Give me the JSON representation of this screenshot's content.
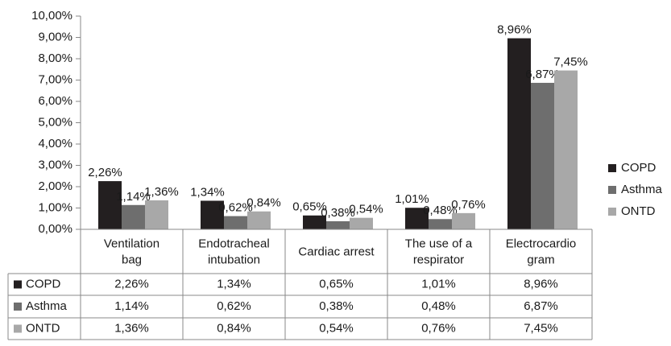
{
  "chart_data": {
    "type": "bar",
    "categories": [
      "Ventilation\nbag",
      "Endotracheal\nintubation",
      "Cardiac arrest",
      "The use of a\nrespirator",
      "Electrocardio\ngram"
    ],
    "series": [
      {
        "name": "COPD",
        "color": "#231f20",
        "values": [
          2.26,
          1.34,
          0.65,
          1.01,
          8.96
        ],
        "value_labels": [
          "2,26%",
          "1,34%",
          "0,65%",
          "1,01%",
          "8,96%"
        ]
      },
      {
        "name": "Asthma",
        "color": "#6e6e6e",
        "values": [
          1.14,
          0.62,
          0.38,
          0.48,
          6.87
        ],
        "value_labels": [
          "1,14%",
          "0,62%",
          "0,38%",
          "0,48%",
          "6,87%"
        ]
      },
      {
        "name": "ONTD",
        "color": "#a8a8a8",
        "values": [
          1.36,
          0.84,
          0.54,
          0.76,
          7.45
        ],
        "value_labels": [
          "1,36%",
          "0,84%",
          "0,54%",
          "0,76%",
          "7,45%"
        ]
      }
    ],
    "ylim": [
      0,
      10
    ],
    "yticks": [
      {
        "value": 0,
        "label": "0,00%"
      },
      {
        "value": 1,
        "label": "1,00%"
      },
      {
        "value": 2,
        "label": "2,00%"
      },
      {
        "value": 3,
        "label": "3,00%"
      },
      {
        "value": 4,
        "label": "4,00%"
      },
      {
        "value": 5,
        "label": "5,00%"
      },
      {
        "value": 6,
        "label": "6,00%"
      },
      {
        "value": 7,
        "label": "7,00%"
      },
      {
        "value": 8,
        "label": "8,00%"
      },
      {
        "value": 9,
        "label": "9,00%"
      },
      {
        "value": 10,
        "label": "10,00%"
      }
    ],
    "legend": "right",
    "data_table": true
  }
}
